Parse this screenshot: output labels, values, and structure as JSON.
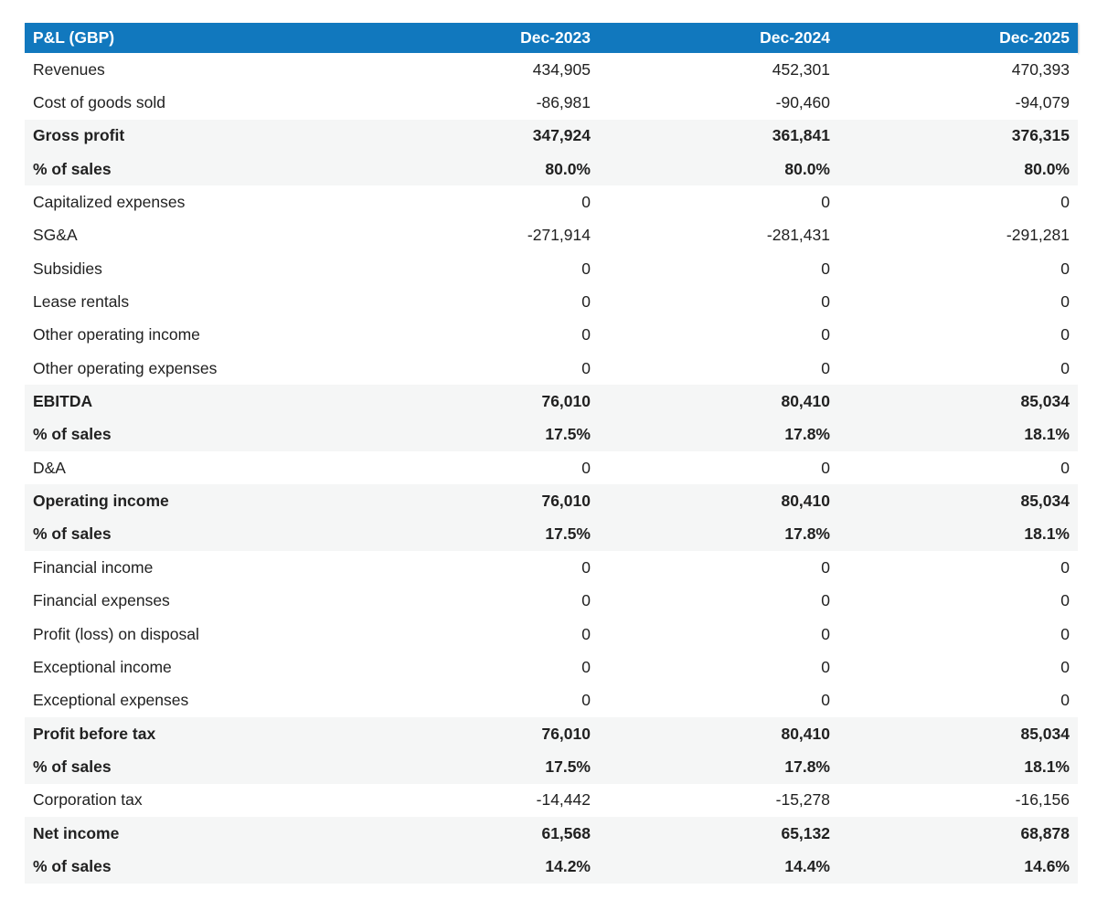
{
  "table": {
    "title_cell": "P&L (GBP)",
    "columns": [
      "Dec-2023",
      "Dec-2024",
      "Dec-2025"
    ],
    "rows": [
      {
        "label": "Revenues",
        "values": [
          "434,905",
          "452,301",
          "470,393"
        ],
        "summary": false
      },
      {
        "label": "Cost of goods sold",
        "values": [
          "-86,981",
          "-90,460",
          "-94,079"
        ],
        "summary": false
      },
      {
        "label": "Gross profit",
        "values": [
          "347,924",
          "361,841",
          "376,315"
        ],
        "summary": true
      },
      {
        "label": "% of sales",
        "values": [
          "80.0%",
          "80.0%",
          "80.0%"
        ],
        "summary": true
      },
      {
        "label": "Capitalized expenses",
        "values": [
          "0",
          "0",
          "0"
        ],
        "summary": false
      },
      {
        "label": "SG&A",
        "values": [
          "-271,914",
          "-281,431",
          "-291,281"
        ],
        "summary": false
      },
      {
        "label": "Subsidies",
        "values": [
          "0",
          "0",
          "0"
        ],
        "summary": false
      },
      {
        "label": "Lease rentals",
        "values": [
          "0",
          "0",
          "0"
        ],
        "summary": false
      },
      {
        "label": "Other operating income",
        "values": [
          "0",
          "0",
          "0"
        ],
        "summary": false
      },
      {
        "label": "Other operating expenses",
        "values": [
          "0",
          "0",
          "0"
        ],
        "summary": false
      },
      {
        "label": "EBITDA",
        "values": [
          "76,010",
          "80,410",
          "85,034"
        ],
        "summary": true
      },
      {
        "label": "% of sales",
        "values": [
          "17.5%",
          "17.8%",
          "18.1%"
        ],
        "summary": true
      },
      {
        "label": "D&A",
        "values": [
          "0",
          "0",
          "0"
        ],
        "summary": false
      },
      {
        "label": "Operating income",
        "values": [
          "76,010",
          "80,410",
          "85,034"
        ],
        "summary": true
      },
      {
        "label": "% of sales",
        "values": [
          "17.5%",
          "17.8%",
          "18.1%"
        ],
        "summary": true
      },
      {
        "label": "Financial income",
        "values": [
          "0",
          "0",
          "0"
        ],
        "summary": false
      },
      {
        "label": "Financial expenses",
        "values": [
          "0",
          "0",
          "0"
        ],
        "summary": false
      },
      {
        "label": "Profit (loss) on disposal",
        "values": [
          "0",
          "0",
          "0"
        ],
        "summary": false
      },
      {
        "label": "Exceptional income",
        "values": [
          "0",
          "0",
          "0"
        ],
        "summary": false
      },
      {
        "label": "Exceptional expenses",
        "values": [
          "0",
          "0",
          "0"
        ],
        "summary": false
      },
      {
        "label": "Profit before tax",
        "values": [
          "76,010",
          "80,410",
          "85,034"
        ],
        "summary": true
      },
      {
        "label": "% of sales",
        "values": [
          "17.5%",
          "17.8%",
          "18.1%"
        ],
        "summary": true
      },
      {
        "label": "Corporation tax",
        "values": [
          "-14,442",
          "-15,278",
          "-16,156"
        ],
        "summary": false
      },
      {
        "label": "Net income",
        "values": [
          "61,568",
          "65,132",
          "68,878"
        ],
        "summary": true
      },
      {
        "label": "% of sales",
        "values": [
          "14.2%",
          "14.4%",
          "14.6%"
        ],
        "summary": true
      }
    ]
  },
  "colors": {
    "header_bg": "#1178be",
    "header_text": "#ffffff",
    "summary_row_bg": "#f5f6f6",
    "body_text": "#212121"
  }
}
